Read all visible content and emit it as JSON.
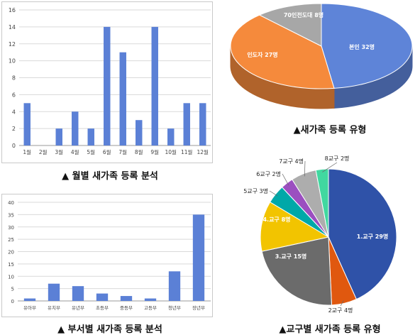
{
  "chart_data": [
    {
      "type": "bar",
      "categories": [
        "1월",
        "2월",
        "3월",
        "4월",
        "5월",
        "6월",
        "7월",
        "8월",
        "9월",
        "10월",
        "11월",
        "12월"
      ],
      "values": [
        5,
        0,
        2,
        4,
        2,
        14,
        11,
        3,
        14,
        2,
        5,
        5
      ],
      "ylim": [
        0,
        16
      ],
      "yticks": [
        0,
        2,
        4,
        6,
        8,
        10,
        12,
        14,
        16
      ],
      "grid": true,
      "color": "#5b80d6",
      "caption": "▲ 월별 새가족 등록 분석"
    },
    {
      "type": "bar",
      "categories": [
        "유아부",
        "유치부",
        "유년부",
        "초등부",
        "중등부",
        "고등부",
        "청년부",
        "장년부"
      ],
      "values": [
        1,
        7,
        6,
        3,
        2,
        1,
        12,
        35
      ],
      "ylim": [
        0,
        40
      ],
      "yticks": [
        0,
        5,
        10,
        15,
        20,
        25,
        30,
        35,
        40
      ],
      "grid": true,
      "color": "#5b80d6",
      "caption": "▲ 부서별 새가족 등록 분석"
    },
    {
      "type": "pie",
      "style": "3d",
      "slices": [
        {
          "label": "본인 32명",
          "value": 32,
          "color": "#5e84d8"
        },
        {
          "label": "인도자 27명",
          "value": 27,
          "color": "#f58a3c"
        },
        {
          "label": "70인전도대 8명",
          "value": 8,
          "color": "#a7a7a7"
        }
      ],
      "caption": "▲새가족 등록 유형"
    },
    {
      "type": "pie",
      "slices": [
        {
          "label": "1.교구 29명",
          "value": 29,
          "color": "#2f52a8"
        },
        {
          "label": "2교구 4명",
          "value": 4,
          "color": "#e0580f"
        },
        {
          "label": "3.교구 15명",
          "value": 15,
          "color": "#6b6b6b"
        },
        {
          "label": "4.교구 8명",
          "value": 8,
          "color": "#f2c400"
        },
        {
          "label": "5교구 3명",
          "value": 3,
          "color": "#00a8a8"
        },
        {
          "label": "6교구 2명",
          "value": 2,
          "color": "#9b4fc0"
        },
        {
          "label": "7교구 4명",
          "value": 4,
          "color": "#adadad"
        },
        {
          "label": "8교구 2명",
          "value": 2,
          "color": "#41d8a0"
        }
      ],
      "caption": "▲교구별 새가족 등록 유형"
    }
  ]
}
